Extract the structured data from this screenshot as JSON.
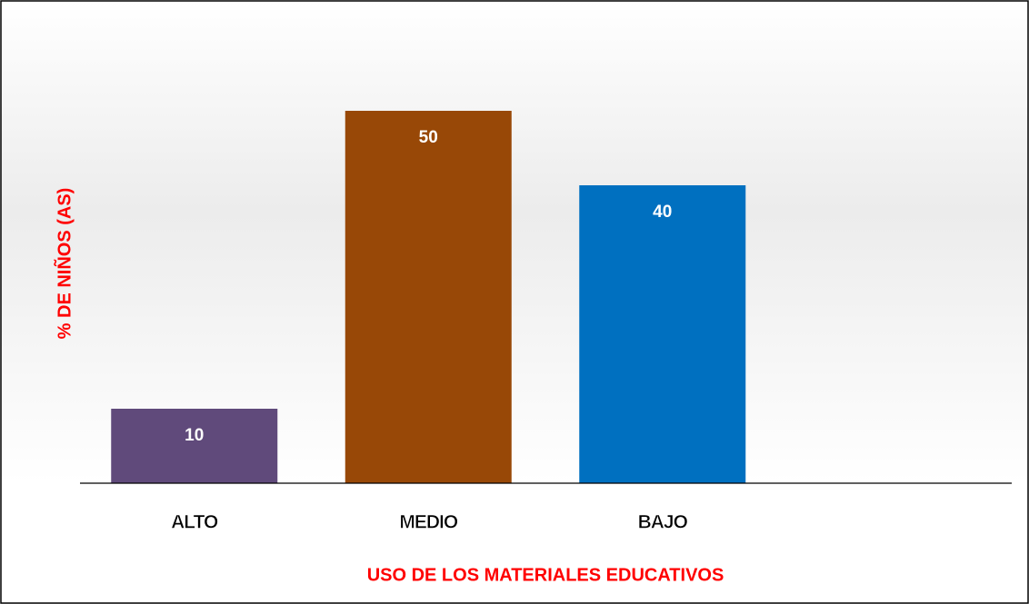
{
  "chart_data": {
    "type": "bar",
    "x_label": "USO DE LOS MATERIALES EDUCATIVOS",
    "y_label": "% DE NIÑOS (AS)",
    "categories": [
      "ALTO",
      "MEDIO",
      "BAJO"
    ],
    "values": [
      10,
      50,
      40
    ],
    "colors": [
      "#604a7b",
      "#984807",
      "#0070c0"
    ],
    "ylim": [
      0,
      60
    ]
  }
}
